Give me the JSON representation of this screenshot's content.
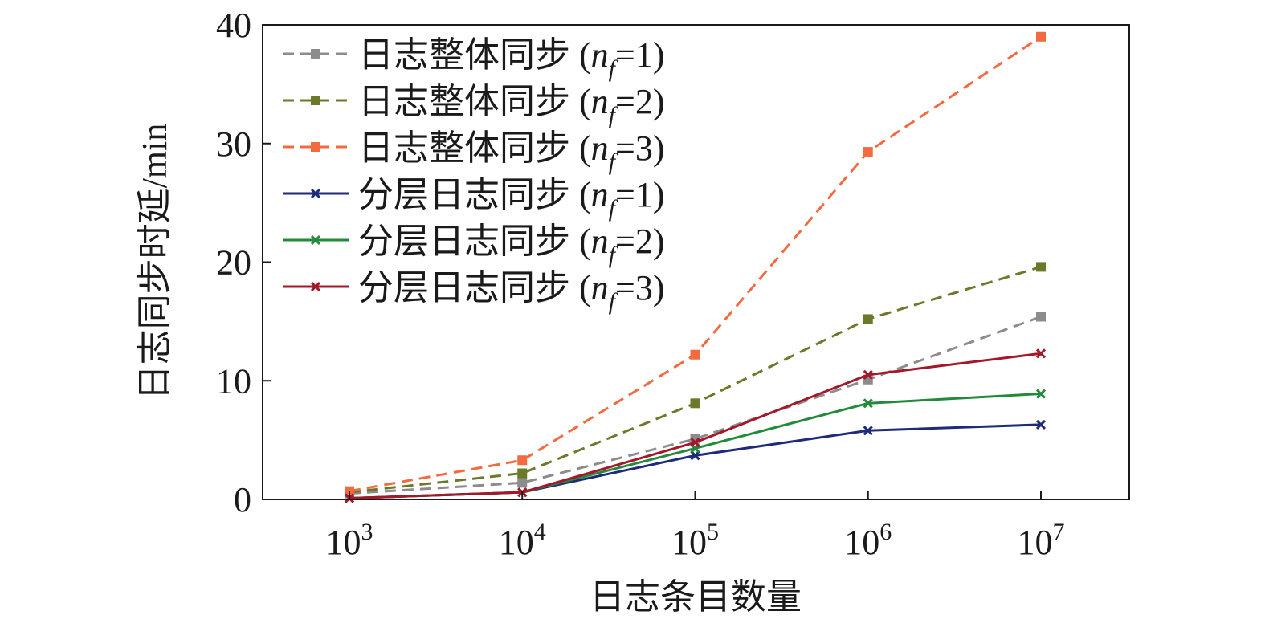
{
  "chart_data": {
    "type": "line",
    "xlabel": "日志条目数量",
    "ylabel": "日志同步时延/min",
    "x_scale": "log",
    "x": [
      1000,
      10000,
      100000,
      1000000,
      10000000
    ],
    "x_tick_labels": [
      {
        "base": "10",
        "exp": "3"
      },
      {
        "base": "10",
        "exp": "4"
      },
      {
        "base": "10",
        "exp": "5"
      },
      {
        "base": "10",
        "exp": "6"
      },
      {
        "base": "10",
        "exp": "7"
      }
    ],
    "ylim": [
      0,
      40
    ],
    "y_ticks": [
      0,
      10,
      20,
      30,
      40
    ],
    "grid": false,
    "legend_position": "top-left",
    "series": [
      {
        "name": "日志整体同步",
        "nf": "1",
        "color": "#8c8c8c",
        "dash": true,
        "marker": "square",
        "values": [
          0.5,
          1.4,
          5.1,
          10.1,
          15.4
        ]
      },
      {
        "name": "日志整体同步",
        "nf": "2",
        "color": "#6b7a2a",
        "dash": true,
        "marker": "square",
        "values": [
          0.6,
          2.2,
          8.1,
          15.2,
          19.6
        ]
      },
      {
        "name": "日志整体同步",
        "nf": "3",
        "color": "#f26a3d",
        "dash": true,
        "marker": "square",
        "values": [
          0.7,
          3.3,
          12.2,
          29.3,
          39.0
        ]
      },
      {
        "name": "分层日志同步",
        "nf": "1",
        "color": "#1f2a78",
        "dash": false,
        "marker": "x",
        "values": [
          0.1,
          0.6,
          3.7,
          5.8,
          6.3
        ]
      },
      {
        "name": "分层日志同步",
        "nf": "2",
        "color": "#228b3b",
        "dash": false,
        "marker": "x",
        "values": [
          0.1,
          0.6,
          4.3,
          8.1,
          8.9
        ]
      },
      {
        "name": "分层日志同步",
        "nf": "3",
        "color": "#a3182a",
        "dash": false,
        "marker": "x",
        "values": [
          0.1,
          0.6,
          4.8,
          10.5,
          12.3
        ]
      }
    ]
  }
}
